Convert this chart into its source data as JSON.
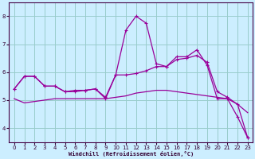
{
  "background_color": "#cceeff",
  "grid_color": "#99cccc",
  "line_color": "#990099",
  "xlabel": "Windchill (Refroidissement éolien,°C)",
  "x": [
    0,
    1,
    2,
    3,
    4,
    5,
    6,
    7,
    8,
    9,
    10,
    11,
    12,
    13,
    14,
    15,
    16,
    17,
    18,
    19,
    20,
    21,
    22,
    23
  ],
  "series_jagged": [
    5.4,
    5.85,
    5.85,
    5.5,
    5.5,
    5.3,
    5.3,
    5.35,
    5.4,
    5.05,
    5.9,
    7.5,
    8.0,
    7.75,
    6.3,
    6.2,
    6.55,
    6.55,
    6.8,
    6.25,
    5.05,
    5.05,
    4.4,
    3.65
  ],
  "series_mid": [
    5.4,
    5.85,
    5.85,
    5.5,
    5.5,
    5.3,
    5.35,
    5.35,
    5.4,
    5.1,
    5.9,
    5.9,
    5.95,
    6.05,
    6.2,
    6.2,
    6.45,
    6.5,
    6.6,
    6.35,
    5.3,
    5.1,
    4.85,
    3.65
  ],
  "series_smooth": [
    5.05,
    4.9,
    4.95,
    5.0,
    5.05,
    5.05,
    5.05,
    5.05,
    5.05,
    5.05,
    5.1,
    5.15,
    5.25,
    5.3,
    5.35,
    5.35,
    5.3,
    5.25,
    5.2,
    5.15,
    5.1,
    5.05,
    4.85,
    4.55
  ],
  "ylim": [
    3.5,
    8.5
  ],
  "xlim": [
    -0.5,
    23.5
  ],
  "yticks": [
    4,
    5,
    6,
    7,
    8
  ],
  "xticks": [
    0,
    1,
    2,
    3,
    4,
    5,
    6,
    7,
    8,
    9,
    10,
    11,
    12,
    13,
    14,
    15,
    16,
    17,
    18,
    19,
    20,
    21,
    22,
    23
  ],
  "tick_labelsize": 5,
  "xlabel_fontsize": 5
}
